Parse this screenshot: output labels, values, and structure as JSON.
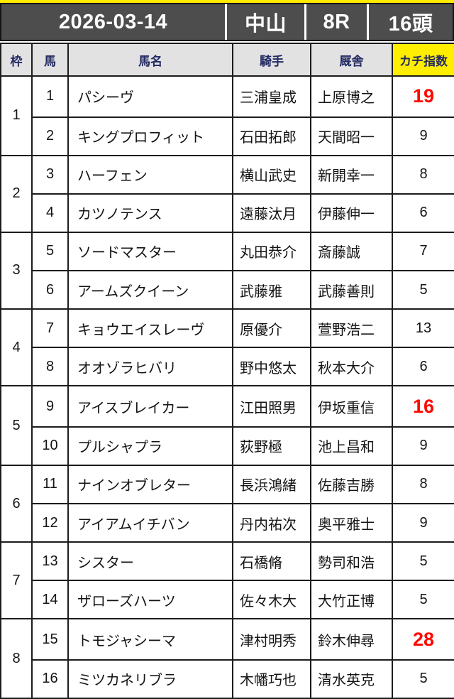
{
  "header": {
    "date": "2026-03-14",
    "track": "中山",
    "race": "8R",
    "heads": "16頭"
  },
  "columns": {
    "waku": "枠",
    "uma": "馬",
    "name": "馬名",
    "jockey": "騎手",
    "stable": "厩舎",
    "index": "カチ指数"
  },
  "colors": {
    "header_bar_bg": "#4d4d4d",
    "accent_yellow": "#ffee00",
    "index_column_bg": "#fcf8d2",
    "column_header_bg": "#e2e2e2",
    "column_header_text": "#232a63",
    "highlight_red": "#ff0800",
    "frame_colors": {
      "1": "#ffffff",
      "2": "#000000",
      "3": "#ff0000",
      "4": "#21a7e3",
      "5": "#ffee00",
      "6": "#0aa050",
      "7": "#f3a218",
      "8": "#f59cf2"
    }
  },
  "frames": [
    {
      "no": "1",
      "horses": [
        {
          "num": "1",
          "name": "パシーヴ",
          "jockey": "三浦皇成",
          "stable": "上原博之",
          "index": "19",
          "highlight": true
        },
        {
          "num": "2",
          "name": "キングプロフィット",
          "jockey": "石田拓郎",
          "stable": "天間昭一",
          "index": "9",
          "highlight": false
        }
      ]
    },
    {
      "no": "2",
      "horses": [
        {
          "num": "3",
          "name": "ハーフェン",
          "jockey": "横山武史",
          "stable": "新開幸一",
          "index": "8",
          "highlight": false
        },
        {
          "num": "4",
          "name": "カツノテンス",
          "jockey": "遠藤汰月",
          "stable": "伊藤伸一",
          "index": "6",
          "highlight": false
        }
      ]
    },
    {
      "no": "3",
      "horses": [
        {
          "num": "5",
          "name": "ソードマスター",
          "jockey": "丸田恭介",
          "stable": "斎藤誠",
          "index": "7",
          "highlight": false
        },
        {
          "num": "6",
          "name": "アームズクイーン",
          "jockey": "武藤雅",
          "stable": "武藤善則",
          "index": "5",
          "highlight": false
        }
      ]
    },
    {
      "no": "4",
      "horses": [
        {
          "num": "7",
          "name": "キョウエイスレーヴ",
          "jockey": "原優介",
          "stable": "萱野浩二",
          "index": "13",
          "highlight": false
        },
        {
          "num": "8",
          "name": "オオゾラヒバリ",
          "jockey": "野中悠太",
          "stable": "秋本大介",
          "index": "6",
          "highlight": false
        }
      ]
    },
    {
      "no": "5",
      "horses": [
        {
          "num": "9",
          "name": "アイスブレイカー",
          "jockey": "江田照男",
          "stable": "伊坂重信",
          "index": "16",
          "highlight": true
        },
        {
          "num": "10",
          "name": "プルシャプラ",
          "jockey": "荻野極",
          "stable": "池上昌和",
          "index": "9",
          "highlight": false
        }
      ]
    },
    {
      "no": "6",
      "horses": [
        {
          "num": "11",
          "name": "ナインオブレター",
          "jockey": "長浜鴻緒",
          "stable": "佐藤吉勝",
          "index": "8",
          "highlight": false
        },
        {
          "num": "12",
          "name": "アイアムイチバン",
          "jockey": "丹内祐次",
          "stable": "奥平雅士",
          "index": "9",
          "highlight": false
        }
      ]
    },
    {
      "no": "7",
      "horses": [
        {
          "num": "13",
          "name": "シスター",
          "jockey": "石橋脩",
          "stable": "勢司和浩",
          "index": "5",
          "highlight": false
        },
        {
          "num": "14",
          "name": "ザローズハーツ",
          "jockey": "佐々木大",
          "stable": "大竹正博",
          "index": "5",
          "highlight": false
        }
      ]
    },
    {
      "no": "8",
      "horses": [
        {
          "num": "15",
          "name": "トモジャシーマ",
          "jockey": "津村明秀",
          "stable": "鈴木伸尋",
          "index": "28",
          "highlight": true
        },
        {
          "num": "16",
          "name": "ミツカネリブラ",
          "jockey": "木幡巧也",
          "stable": "清水英克",
          "index": "5",
          "highlight": false
        }
      ]
    }
  ]
}
